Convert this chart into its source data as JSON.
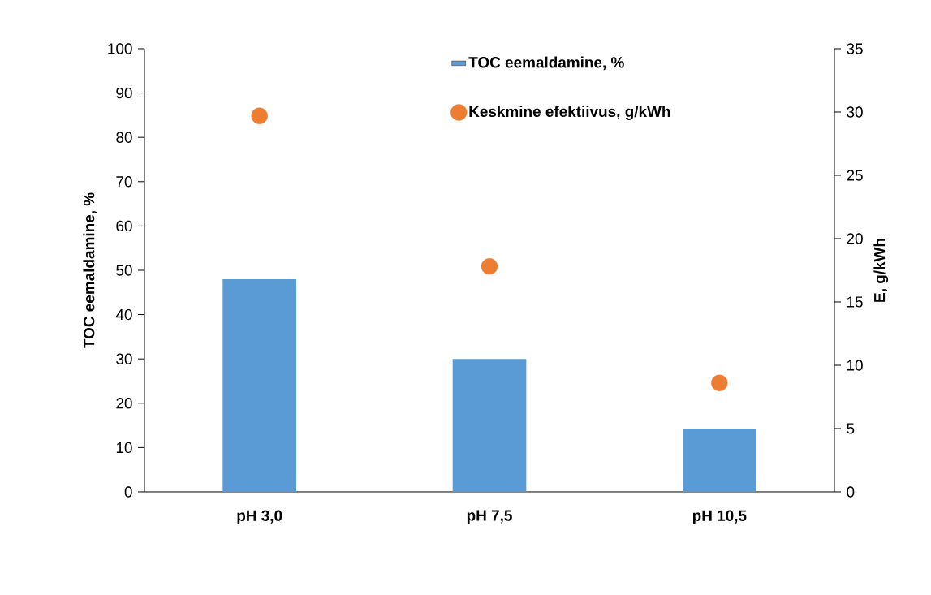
{
  "chart_data": {
    "type": "bar",
    "categories": [
      "pH 3,0",
      "pH 7,5",
      "pH 10,5"
    ],
    "ylabel": "TOC eemaldamine, %",
    "y2label": "E, g/kWh",
    "ylim": [
      0,
      100
    ],
    "yticks": [
      0,
      10,
      20,
      30,
      40,
      50,
      60,
      70,
      80,
      90,
      100
    ],
    "y2lim": [
      0,
      35
    ],
    "y2ticks": [
      0,
      5,
      10,
      15,
      20,
      25,
      30,
      35
    ],
    "legend": "top",
    "series": [
      {
        "name": "TOC eemaldamine, %",
        "color": "#5b9bd5",
        "values": [
          48,
          30,
          14.3
        ]
      },
      {
        "name": "Keskmine efektiivus, g/kWh",
        "type": "scatter",
        "axis": "y2",
        "marker": "circle",
        "color": "#ed7d31",
        "values": [
          29.7,
          17.8,
          8.6
        ]
      }
    ]
  }
}
